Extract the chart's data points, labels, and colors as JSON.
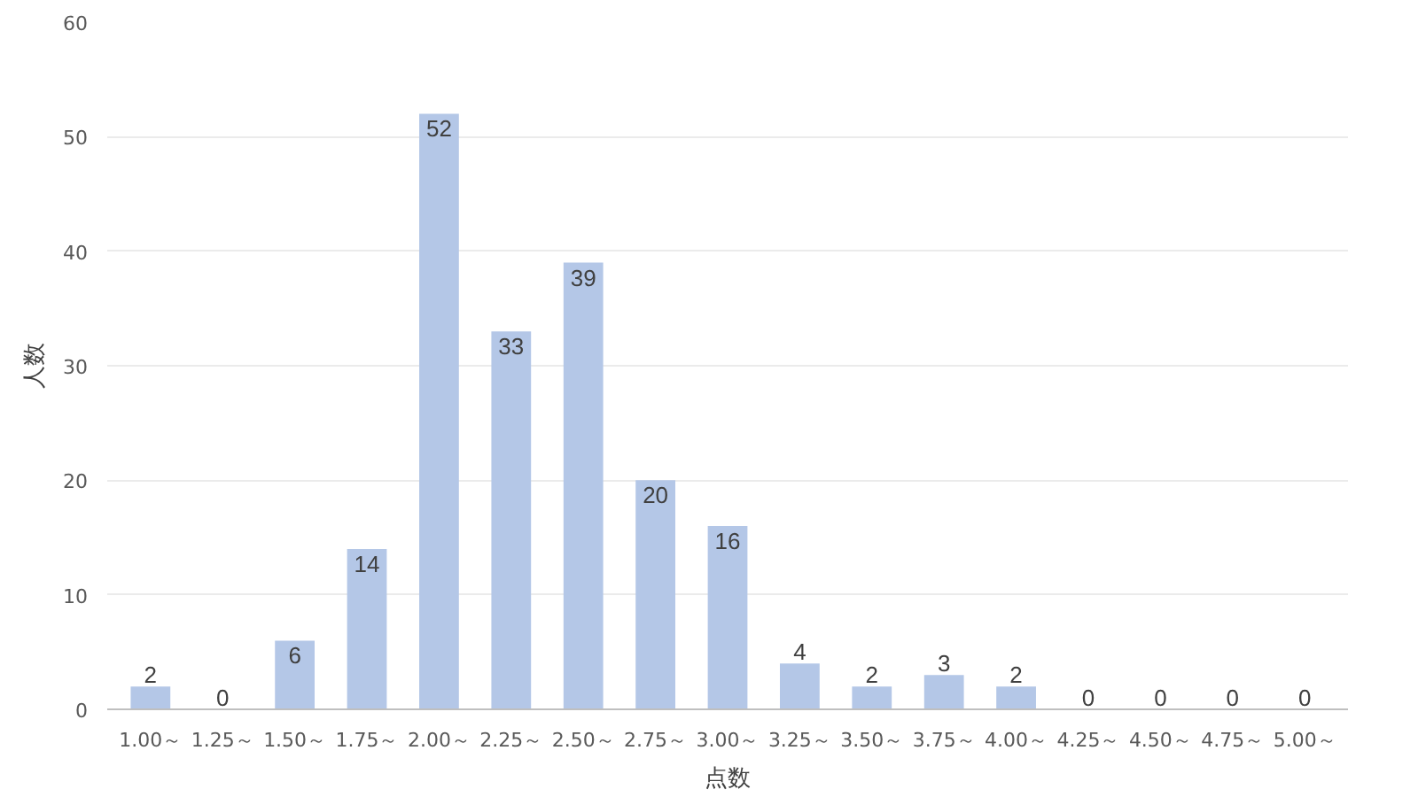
{
  "chart_data": {
    "type": "bar",
    "xlabel": "点数",
    "ylabel": "人数",
    "categories": [
      "1.00～",
      "1.25～",
      "1.50～",
      "1.75～",
      "2.00～",
      "2.25～",
      "2.50～",
      "2.75～",
      "3.00～",
      "3.25～",
      "3.50～",
      "3.75～",
      "4.00～",
      "4.25～",
      "4.50～",
      "4.75～",
      "5.00～"
    ],
    "values": [
      2,
      0,
      6,
      14,
      52,
      33,
      39,
      20,
      16,
      4,
      2,
      3,
      2,
      0,
      0,
      0,
      0
    ],
    "color": "#b4c7e7",
    "ylim": [
      0,
      60
    ],
    "yticks": [
      0,
      10,
      20,
      30,
      40,
      50,
      60
    ],
    "grid": "y",
    "data_labels": true
  }
}
